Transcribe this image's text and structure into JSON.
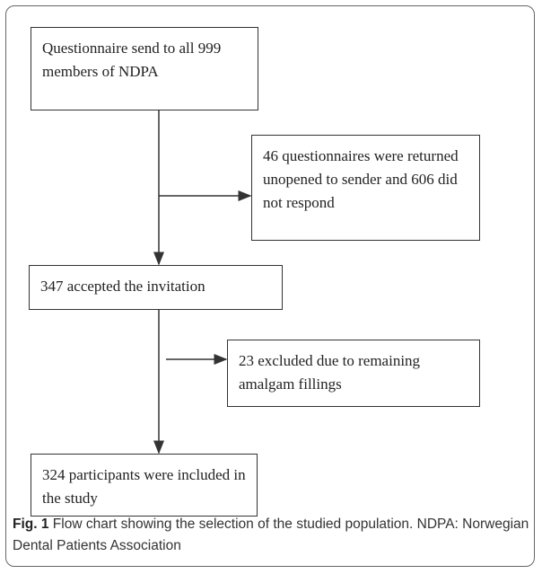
{
  "nodes": [
    {
      "label": "Questionnaire send to all 999 members of NDPA"
    },
    {
      "label": "46 questionnaires were returned unopened to sender and 606 did not respond"
    },
    {
      "label": "347 accepted the invitation"
    },
    {
      "label": "23 excluded due to remaining amalgam fillings"
    },
    {
      "label": "324 participants were included in the study"
    }
  ],
  "caption": {
    "label": "Fig. 1",
    "text": "Flow chart showing the selection of the studied population. NDPA: Norwegian Dental Patients Association"
  }
}
